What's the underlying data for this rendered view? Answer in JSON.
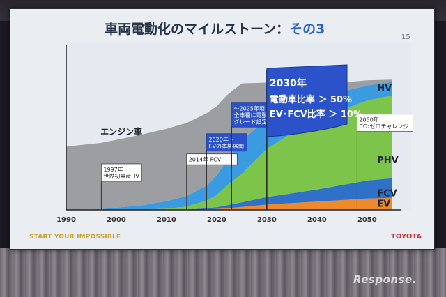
{
  "slide": {
    "title_main": "車両電動化のマイルストーン：",
    "title_highlight": "その3",
    "page_number": "15",
    "footer_tagline": "START YOUR IMPOSSIBLE",
    "footer_logo": "TOYOTA"
  },
  "watermark": "Response.",
  "colors": {
    "engine": "#9c9ea2",
    "hv": "#3a9be0",
    "phv": "#7cc44a",
    "fcv": "#2f70c9",
    "ev": "#ef8a2c",
    "flag": "#2b52c9",
    "title_accent": "#2a5fc7"
  },
  "chart_data": {
    "type": "area",
    "x_ticks": [
      "1990",
      "2000",
      "2010",
      "2020",
      "2030",
      "2040",
      "2050"
    ],
    "xlim": [
      1990,
      2056
    ],
    "ylim": [
      0,
      100
    ],
    "grid": false,
    "x": [
      1990,
      1997,
      2000,
      2005,
      2010,
      2014,
      2018,
      2020,
      2022,
      2025,
      2030,
      2035,
      2040,
      2045,
      2050,
      2055
    ],
    "series": [
      {
        "name": "EV",
        "color": "#ef8a2c",
        "values": [
          0,
          0,
          0,
          0,
          0,
          0,
          0.3,
          0.6,
          1,
          2,
          3.5,
          4.5,
          5.5,
          6.5,
          7.5,
          8
        ]
      },
      {
        "name": "FCV",
        "color": "#2f70c9",
        "values": [
          0,
          0,
          0,
          0,
          0,
          0.2,
          0.8,
          1.2,
          2,
          3,
          5,
          6.5,
          8,
          10,
          12,
          13
        ]
      },
      {
        "name": "PHV",
        "color": "#7cc44a",
        "values": [
          0,
          0,
          0,
          0,
          0.8,
          2,
          5,
          8,
          13,
          19,
          32,
          40,
          46,
          50,
          53,
          55
        ]
      },
      {
        "name": "HV",
        "color": "#3a9be0",
        "values": [
          0,
          0.5,
          1.5,
          3,
          5,
          7,
          10,
          13,
          17,
          22,
          20,
          18,
          15,
          12,
          10,
          9
        ]
      },
      {
        "name": "エンジン車",
        "color": "#9c9ea2",
        "values": [
          42,
          44,
          45,
          47,
          48,
          48.5,
          48,
          46,
          43,
          38,
          24,
          16,
          10,
          6,
          3.5,
          1.5
        ]
      }
    ],
    "series_labels": [
      {
        "text": "HV",
        "x": 2052,
        "y": 79
      },
      {
        "text": "PHV",
        "x": 2052,
        "y": 31
      },
      {
        "text": "FCV",
        "x": 2052,
        "y": 9
      },
      {
        "text": "EV",
        "x": 2052,
        "y": 2
      },
      {
        "text": "エンジン車",
        "x": 2001,
        "y": 50
      }
    ],
    "annotations": [
      {
        "year": 1997,
        "lines": [
          "1997年",
          "世界初量産HV"
        ],
        "y": 19,
        "style": "white"
      },
      {
        "year": 2014,
        "lines": [
          "2014年 FCV"
        ],
        "y": 30,
        "style": "white"
      },
      {
        "year": 2018,
        "lines": [
          "2020年〜",
          "EVの本格展開"
        ],
        "y": 39,
        "style": "blue"
      },
      {
        "year": 2023,
        "lines": [
          "〜2025年頃",
          "全車種に電動",
          "グレード設定"
        ],
        "y": 55,
        "style": "blue"
      },
      {
        "year": 2048,
        "lines": [
          "2050年",
          "CO₂ゼロチャレンジ"
        ],
        "y": 52,
        "style": "white"
      }
    ],
    "flag": {
      "year": 2030,
      "lines": [
        "2030年",
        "電動車比率 ＞ 50%",
        "EV･FCV比率 ＞ 10%"
      ]
    }
  }
}
